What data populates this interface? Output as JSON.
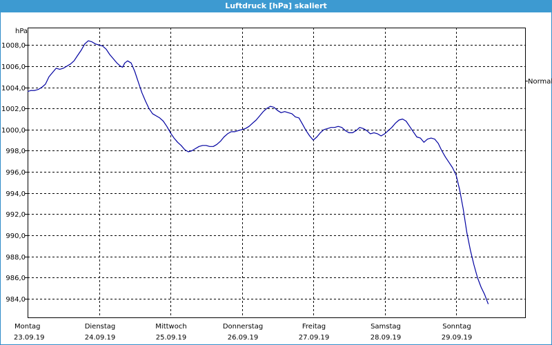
{
  "window": {
    "title": "Luftdruck [hPa] skaliert"
  },
  "colors": {
    "titlebar": "#3d9ad1",
    "series": "#0000a0",
    "grid": "#000000"
  },
  "chart_data": {
    "type": "line",
    "title": "Luftdruck [hPa] skaliert",
    "ylabel": "hPa",
    "ylim": [
      982.2,
      1009.3
    ],
    "xlim": [
      0,
      7.0
    ],
    "yticks": [
      984,
      986,
      988,
      990,
      992,
      994,
      996,
      998,
      1000,
      1002,
      1004,
      1006,
      1008
    ],
    "ytick_labels": [
      "984,0",
      "986,0",
      "988,0",
      "990,0",
      "992,0",
      "994,0",
      "996,0",
      "998,0",
      "1000,0",
      "1002,0",
      "1004,0",
      "1006,0",
      "1008,0"
    ],
    "xticks": [
      {
        "x": 0,
        "day": "Montag",
        "date": "23.09.19"
      },
      {
        "x": 1,
        "day": "Dienstag",
        "date": "24.09.19"
      },
      {
        "x": 2,
        "day": "Mittwoch",
        "date": "25.09.19"
      },
      {
        "x": 3,
        "day": "Donnerstag",
        "date": "26.09.19"
      },
      {
        "x": 4,
        "day": "Freitag",
        "date": "27.09.19"
      },
      {
        "x": 5,
        "day": "Samstag",
        "date": "28.09.19"
      },
      {
        "x": 6,
        "day": "Sonntag",
        "date": "29.09.19"
      }
    ],
    "grid": true,
    "reference_line": {
      "label": "Normal",
      "value": 1004.6
    },
    "series": [
      {
        "values": [
          [
            0.0,
            1003.6
          ],
          [
            0.05,
            1003.7
          ],
          [
            0.1,
            1003.7
          ],
          [
            0.15,
            1003.8
          ],
          [
            0.2,
            1004.0
          ],
          [
            0.25,
            1004.3
          ],
          [
            0.3,
            1005.0
          ],
          [
            0.35,
            1005.4
          ],
          [
            0.4,
            1005.8
          ],
          [
            0.45,
            1005.7
          ],
          [
            0.5,
            1005.8
          ],
          [
            0.55,
            1006.0
          ],
          [
            0.6,
            1006.2
          ],
          [
            0.65,
            1006.5
          ],
          [
            0.7,
            1007.0
          ],
          [
            0.75,
            1007.5
          ],
          [
            0.8,
            1008.1
          ],
          [
            0.85,
            1008.4
          ],
          [
            0.9,
            1008.3
          ],
          [
            0.95,
            1008.1
          ],
          [
            1.0,
            1008.0
          ],
          [
            1.05,
            1007.9
          ],
          [
            1.1,
            1007.6
          ],
          [
            1.15,
            1007.1
          ],
          [
            1.2,
            1006.7
          ],
          [
            1.25,
            1006.3
          ],
          [
            1.3,
            1006.0
          ],
          [
            1.33,
            1005.9
          ],
          [
            1.36,
            1006.3
          ],
          [
            1.4,
            1006.5
          ],
          [
            1.45,
            1006.3
          ],
          [
            1.5,
            1005.5
          ],
          [
            1.55,
            1004.5
          ],
          [
            1.6,
            1003.5
          ],
          [
            1.65,
            1002.7
          ],
          [
            1.7,
            1002.0
          ],
          [
            1.75,
            1001.5
          ],
          [
            1.8,
            1001.3
          ],
          [
            1.85,
            1001.1
          ],
          [
            1.9,
            1000.8
          ],
          [
            1.95,
            1000.3
          ],
          [
            2.0,
            999.7
          ],
          [
            2.05,
            999.2
          ],
          [
            2.1,
            998.8
          ],
          [
            2.15,
            998.5
          ],
          [
            2.2,
            998.1
          ],
          [
            2.25,
            997.9
          ],
          [
            2.3,
            998.0
          ],
          [
            2.35,
            998.2
          ],
          [
            2.4,
            998.4
          ],
          [
            2.45,
            998.5
          ],
          [
            2.5,
            998.5
          ],
          [
            2.55,
            998.4
          ],
          [
            2.6,
            998.4
          ],
          [
            2.65,
            998.6
          ],
          [
            2.7,
            998.9
          ],
          [
            2.75,
            999.3
          ],
          [
            2.8,
            999.6
          ],
          [
            2.85,
            999.8
          ],
          [
            2.9,
            999.8
          ],
          [
            2.95,
            999.9
          ],
          [
            3.0,
            1000.0
          ],
          [
            3.05,
            1000.1
          ],
          [
            3.1,
            1000.3
          ],
          [
            3.15,
            1000.6
          ],
          [
            3.2,
            1000.9
          ],
          [
            3.25,
            1001.3
          ],
          [
            3.3,
            1001.7
          ],
          [
            3.35,
            1002.0
          ],
          [
            3.4,
            1002.2
          ],
          [
            3.45,
            1002.1
          ],
          [
            3.5,
            1001.8
          ],
          [
            3.55,
            1001.6
          ],
          [
            3.6,
            1001.7
          ],
          [
            3.65,
            1001.6
          ],
          [
            3.7,
            1001.5
          ],
          [
            3.75,
            1001.2
          ],
          [
            3.8,
            1001.1
          ],
          [
            3.85,
            1000.5
          ],
          [
            3.9,
            999.9
          ],
          [
            3.95,
            999.4
          ],
          [
            4.0,
            999.0
          ],
          [
            4.05,
            999.3
          ],
          [
            4.1,
            999.7
          ],
          [
            4.15,
            1000.0
          ],
          [
            4.2,
            1000.1
          ],
          [
            4.25,
            1000.2
          ],
          [
            4.3,
            1000.2
          ],
          [
            4.35,
            1000.3
          ],
          [
            4.4,
            1000.2
          ],
          [
            4.45,
            999.9
          ],
          [
            4.5,
            999.7
          ],
          [
            4.55,
            999.7
          ],
          [
            4.6,
            999.9
          ],
          [
            4.65,
            1000.2
          ],
          [
            4.7,
            1000.1
          ],
          [
            4.75,
            999.9
          ],
          [
            4.8,
            999.6
          ],
          [
            4.85,
            999.7
          ],
          [
            4.9,
            999.6
          ],
          [
            4.95,
            999.4
          ],
          [
            5.0,
            999.6
          ],
          [
            5.05,
            999.9
          ],
          [
            5.1,
            1000.2
          ],
          [
            5.15,
            1000.6
          ],
          [
            5.2,
            1000.9
          ],
          [
            5.25,
            1001.0
          ],
          [
            5.3,
            1000.8
          ],
          [
            5.35,
            1000.3
          ],
          [
            5.4,
            999.8
          ],
          [
            5.45,
            999.3
          ],
          [
            5.5,
            999.2
          ],
          [
            5.55,
            998.8
          ],
          [
            5.6,
            999.1
          ],
          [
            5.65,
            999.2
          ],
          [
            5.7,
            999.1
          ],
          [
            5.75,
            998.7
          ],
          [
            5.8,
            998.0
          ],
          [
            5.85,
            997.4
          ],
          [
            5.9,
            996.9
          ],
          [
            5.95,
            996.4
          ],
          [
            6.0,
            995.7
          ],
          [
            6.05,
            994.3
          ],
          [
            6.1,
            992.5
          ],
          [
            6.15,
            990.3
          ],
          [
            6.2,
            988.6
          ],
          [
            6.25,
            987.2
          ],
          [
            6.3,
            986.0
          ],
          [
            6.35,
            985.1
          ],
          [
            6.4,
            984.4
          ],
          [
            6.45,
            983.5
          ]
        ]
      }
    ]
  }
}
